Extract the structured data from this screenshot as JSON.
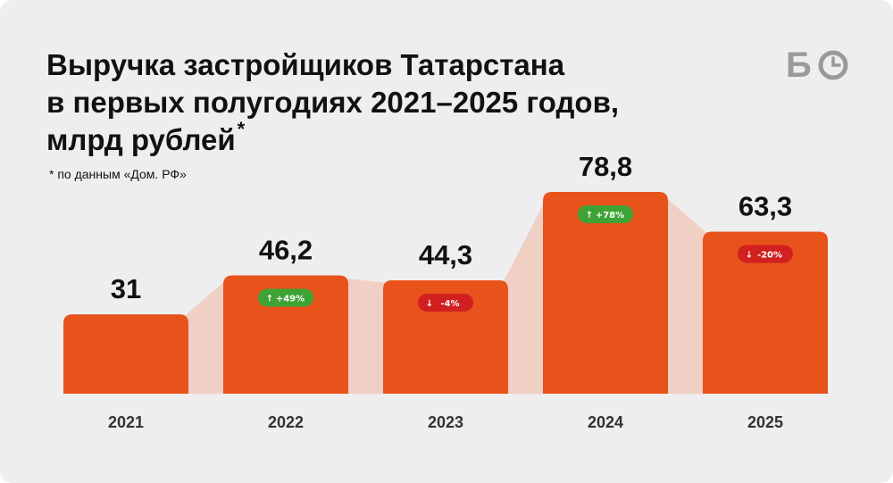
{
  "title_lines": [
    "Выручка застройщиков Татарстана",
    "в первых полугодиях 2021–2025 годов,",
    "млрд рублей"
  ],
  "title_mark": "*",
  "note": "* по данным «Дом. РФ»",
  "logo": {
    "text": "Б",
    "icon": "clock-icon",
    "color": "#9a9a9a"
  },
  "colors": {
    "bar": "#e8521b",
    "connector": "#f0cfc5",
    "up": "#3ea335",
    "down": "#d21f1f"
  },
  "chart_data": {
    "type": "bar",
    "title": "Выручка застройщиков Татарстана в первых полугодиях 2021–2025 годов, млрд рублей*",
    "categories": [
      "2021",
      "2022",
      "2023",
      "2024",
      "2025"
    ],
    "values": [
      31,
      46.2,
      44.3,
      78.8,
      63.3
    ],
    "value_labels": [
      "31",
      "46,2",
      "44,3",
      "78,8",
      "63,3"
    ],
    "changes": [
      null,
      {
        "text": "+49%",
        "dir": "up"
      },
      {
        "text": "-4%",
        "dir": "down"
      },
      {
        "text": "+78%",
        "dir": "up"
      },
      {
        "text": "-20%",
        "dir": "down"
      }
    ],
    "ylim": [
      0,
      78.8
    ],
    "grid": false,
    "legend": "none"
  }
}
